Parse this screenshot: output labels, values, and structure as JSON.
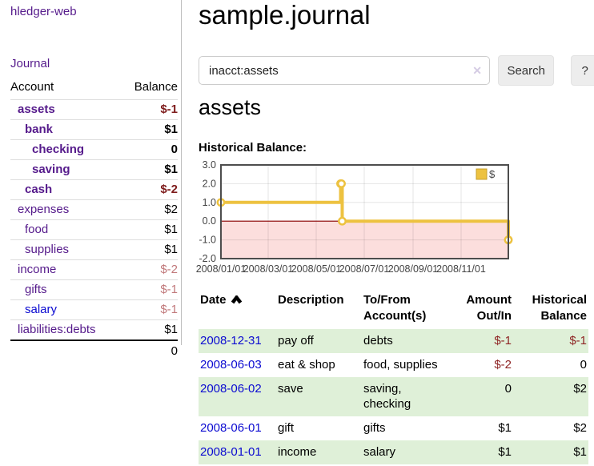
{
  "app": {
    "brand": "hledger-web",
    "nav_journal": "Journal"
  },
  "sidebar": {
    "table": {
      "col_account": "Account",
      "col_balance": "Balance"
    },
    "accounts": [
      {
        "name": "assets",
        "balance": "$-1",
        "depth": 1,
        "bold": true,
        "neg": true,
        "link": "purple"
      },
      {
        "name": "bank",
        "balance": "$1",
        "depth": 2,
        "bold": true,
        "neg": false,
        "link": "purple"
      },
      {
        "name": "checking",
        "balance": "0",
        "depth": 3,
        "bold": true,
        "neg": false,
        "link": "purple"
      },
      {
        "name": "saving",
        "balance": "$1",
        "depth": 3,
        "bold": true,
        "neg": false,
        "link": "purple"
      },
      {
        "name": "cash",
        "balance": "$-2",
        "depth": 2,
        "bold": true,
        "neg": true,
        "link": "purple"
      },
      {
        "name": "expenses",
        "balance": "$2",
        "depth": 1,
        "bold": false,
        "neg": false,
        "link": "purple"
      },
      {
        "name": "food",
        "balance": "$1",
        "depth": 2,
        "bold": false,
        "neg": false,
        "link": "purple"
      },
      {
        "name": "supplies",
        "balance": "$1",
        "depth": 2,
        "bold": false,
        "neg": false,
        "link": "purple"
      },
      {
        "name": "income",
        "balance": "$-2",
        "depth": 1,
        "bold": false,
        "neg": true,
        "link": "purple"
      },
      {
        "name": "gifts",
        "balance": "$-1",
        "depth": 2,
        "bold": false,
        "neg": true,
        "link": "purple"
      },
      {
        "name": "salary",
        "balance": "$-1",
        "depth": 2,
        "bold": false,
        "neg": true,
        "link": "blue"
      },
      {
        "name": "liabilities:debts",
        "balance": "$1",
        "depth": 1,
        "bold": false,
        "neg": false,
        "link": "purple"
      }
    ],
    "total": "0"
  },
  "header": {
    "title": "sample.journal"
  },
  "search": {
    "value": "inacct:assets",
    "clear_icon": "✕",
    "button": "Search",
    "help": "?"
  },
  "report": {
    "title": "assets",
    "chart_label": "Historical Balance:"
  },
  "chart_data": {
    "type": "line",
    "step": true,
    "title": "Historical Balance:",
    "series": [
      {
        "name": "$",
        "color": "#edc240",
        "points": [
          [
            "2008/01/01",
            1
          ],
          [
            "2008/06/01",
            2
          ],
          [
            "2008/06/02",
            2
          ],
          [
            "2008/06/03",
            0
          ],
          [
            "2008/12/31",
            -1
          ]
        ]
      }
    ],
    "ylim": [
      -2,
      3
    ],
    "yticks": [
      {
        "value": 3,
        "label": "3.0"
      },
      {
        "value": 2,
        "label": "2.0"
      },
      {
        "value": 1,
        "label": "1.0"
      },
      {
        "value": 0,
        "label": "0.0"
      },
      {
        "value": -1,
        "label": "-1.0"
      },
      {
        "value": -2,
        "label": "-2.0"
      }
    ],
    "xrange": [
      "2008/01/01",
      "2008/12/31"
    ],
    "xticks": [
      {
        "date": "2008/01/01",
        "label": "2008/01/01"
      },
      {
        "date": "2008/03/01",
        "label": "2008/03/01"
      },
      {
        "date": "2008/05/01",
        "label": "2008/05/01"
      },
      {
        "date": "2008/07/01",
        "label": "2008/07/01"
      },
      {
        "date": "2008/09/01",
        "label": "2008/09/01"
      },
      {
        "date": "2008/11/01",
        "label": "2008/11/01"
      }
    ],
    "legend": {
      "label": "$",
      "position": "top-right"
    },
    "grid": true,
    "negative_region_color": "#fcdedd",
    "zero_line_color": "#8b0000",
    "border_color": "#4d4d4d"
  },
  "register": {
    "columns": [
      {
        "label": "Date",
        "align": "left",
        "sorted": "asc"
      },
      {
        "label": "Description",
        "align": "left"
      },
      {
        "label": "To/From Account(s)",
        "align": "left"
      },
      {
        "label": "Amount Out/In",
        "align": "right"
      },
      {
        "label": "Historical Balance",
        "align": "right"
      }
    ],
    "rows": [
      {
        "date": "2008-12-31",
        "description": "pay off",
        "accounts": "debts",
        "amount": "$-1",
        "balance": "$-1",
        "amount_neg": true,
        "balance_neg": true,
        "shaded": true
      },
      {
        "date": "2008-06-03",
        "description": "eat & shop",
        "accounts": "food, supplies",
        "amount": "$-2",
        "balance": "0",
        "amount_neg": true,
        "balance_neg": false,
        "shaded": false
      },
      {
        "date": "2008-06-02",
        "description": "save",
        "accounts": "saving, checking",
        "amount": "0",
        "balance": "$2",
        "amount_neg": false,
        "balance_neg": false,
        "shaded": true
      },
      {
        "date": "2008-06-01",
        "description": "gift",
        "accounts": "gifts",
        "amount": "$1",
        "balance": "$2",
        "amount_neg": false,
        "balance_neg": false,
        "shaded": false
      },
      {
        "date": "2008-01-01",
        "description": "income",
        "accounts": "salary",
        "amount": "$1",
        "balance": "$1",
        "amount_neg": false,
        "balance_neg": false,
        "shaded": true
      }
    ]
  }
}
